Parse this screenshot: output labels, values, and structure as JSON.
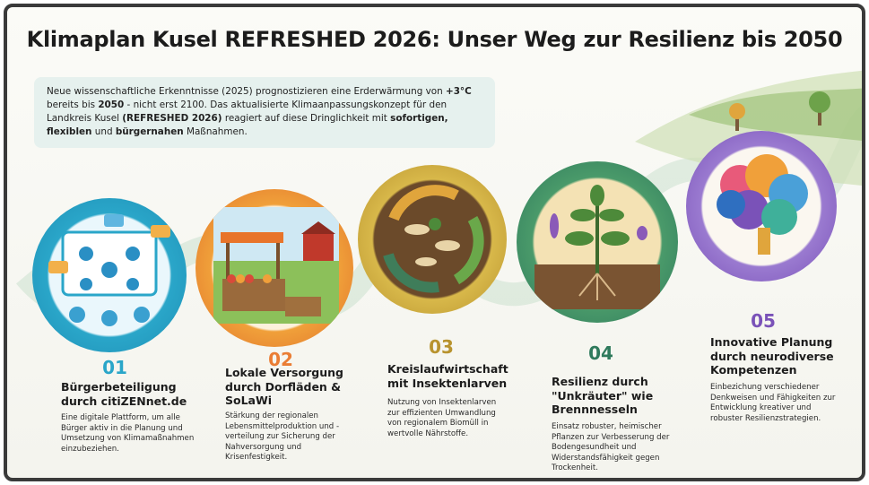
{
  "title": "Klimaplan Kusel REFRESHED 2026: Unser Weg zur Resilienz bis 2050",
  "intro": {
    "t1": "Neue wissenschaftliche Erkenntnisse (2025) prognostizieren eine Erderwärmung von ",
    "b1": "+3°C",
    "t2": " bereits bis ",
    "b2": "2050",
    "t3": " - nicht erst 2100. Das aktualisierte Klimaanpassungskonzept für den Landkreis Kusel ",
    "b3": "(REFRESHED 2026)",
    "t4": " reagiert auf diese Dringlichkeit mit ",
    "b4": "sofortigen, flexiblen",
    "t5": " und ",
    "b5": "bürgernahen",
    "t6": " Maßnahmen."
  },
  "steps": [
    {
      "number": "01",
      "color": "#2aa6c9",
      "title": "Bürgerbeteiligung durch citiZENnet.de",
      "text": "Eine digitale Plattform, um alle Bürger aktiv in die Planung und Umsetzung von Klimamaßnahmen einzubeziehen.",
      "icon": "people-network-icon"
    },
    {
      "number": "02",
      "color": "#ea7d34",
      "title": "Lokale Versorgung durch Dorfläden & SoLaWi",
      "text": "Stärkung der regionalen Lebensmittelproduktion und -verteilung zur Sicherung der Nahversorgung und Krisenfestigkeit.",
      "icon": "market-stall-icon"
    },
    {
      "number": "03",
      "color": "#b8932e",
      "title": "Kreislaufwirtschaft mit Insektenlarven",
      "text": "Nutzung von Insektenlarven zur effizienten Umwandlung von regionalem Biomüll in wertvolle Nährstoffe.",
      "icon": "larvae-cycle-icon"
    },
    {
      "number": "04",
      "color": "#2f7a5c",
      "title": "Resilienz durch \"Unkräuter\" wie Brennnesseln",
      "text": "Einsatz robuster, heimischer Pflanzen zur Verbesserung der Bodengesundheit und Widerstandsfähigkeit gegen Trockenheit.",
      "icon": "nettle-plant-icon"
    },
    {
      "number": "05",
      "color": "#7a52b8",
      "title": "Innovative Planung durch neurodiverse Kompetenzen",
      "text": "Einbezichung verschiedener Denkweisen und Fähigkeiten zur Entwicklung kreativer und robuster Resilienzstrategien.",
      "icon": "colorful-brain-icon"
    }
  ]
}
